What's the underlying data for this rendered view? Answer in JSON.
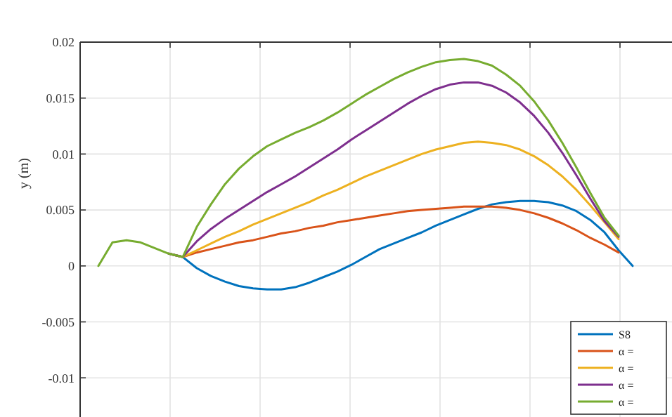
{
  "chart_data": {
    "type": "line",
    "ylabel": "y (m)",
    "categories": [
      null,
      null,
      null,
      null,
      null,
      null,
      null,
      null,
      null,
      null,
      null,
      null,
      null,
      null,
      null,
      null,
      null,
      null,
      null,
      null,
      null,
      null,
      null,
      null,
      null,
      null,
      null,
      null,
      null,
      null,
      null,
      null,
      null,
      null,
      null,
      null,
      null,
      null,
      null
    ],
    "series": [
      {
        "name": "S8",
        "color": "#0072bd",
        "values": [
          null,
          null,
          null,
          null,
          null,
          0.0011,
          0.0008,
          -0.0002,
          -0.0009,
          -0.0014,
          -0.0018,
          -0.002,
          -0.0021,
          -0.0021,
          -0.0019,
          -0.0015,
          -0.001,
          -0.0005,
          0.0001,
          0.0008,
          0.0015,
          0.002,
          0.0025,
          0.003,
          0.0036,
          0.0041,
          0.0046,
          0.0051,
          0.0055,
          0.0057,
          0.0058,
          0.0058,
          0.0057,
          0.0054,
          0.0049,
          0.0041,
          0.003,
          0.0014,
          0
        ]
      },
      {
        "name": "α =",
        "color": "#d95319",
        "values": [
          null,
          null,
          null,
          null,
          null,
          0.0011,
          0.0008,
          0.0012,
          0.0015,
          0.0018,
          0.0021,
          0.0023,
          0.0026,
          0.0029,
          0.0031,
          0.0034,
          0.0036,
          0.0039,
          0.0041,
          0.0043,
          0.0045,
          0.0047,
          0.0049,
          0.005,
          0.0051,
          0.0052,
          0.0053,
          0.0053,
          0.0053,
          0.0052,
          0.005,
          0.0047,
          0.0043,
          0.0038,
          0.0032,
          0.0025,
          0.0019,
          0.0012,
          null
        ]
      },
      {
        "name": "α =",
        "color": "#edb120",
        "values": [
          null,
          null,
          null,
          null,
          null,
          0.0011,
          0.0008,
          0.0014,
          0.002,
          0.0026,
          0.0031,
          0.0037,
          0.0042,
          0.0047,
          0.0052,
          0.0057,
          0.0063,
          0.0068,
          0.0074,
          0.008,
          0.0085,
          0.009,
          0.0095,
          0.01,
          0.0104,
          0.0107,
          0.011,
          0.0111,
          0.011,
          0.0108,
          0.0104,
          0.0098,
          0.009,
          0.008,
          0.0068,
          0.0054,
          0.0039,
          0.0024,
          null
        ]
      },
      {
        "name": "α =",
        "color": "#7e2f8e",
        "values": [
          null,
          null,
          null,
          null,
          null,
          0.0011,
          0.0008,
          0.0022,
          0.0033,
          0.0042,
          0.005,
          0.0058,
          0.0066,
          0.0073,
          0.008,
          0.0088,
          0.0096,
          0.0104,
          0.0113,
          0.0121,
          0.0129,
          0.0137,
          0.0145,
          0.0152,
          0.0158,
          0.0162,
          0.0164,
          0.0164,
          0.0161,
          0.0155,
          0.0146,
          0.0134,
          0.0119,
          0.0101,
          0.0081,
          0.006,
          0.004,
          0.0026,
          null
        ]
      },
      {
        "name": "α =",
        "color": "#77ac30",
        "values": [
          0,
          0.0021,
          0.0023,
          0.0021,
          0.0016,
          0.0011,
          0.0008,
          0.0035,
          0.0055,
          0.0073,
          0.0087,
          0.0098,
          0.0107,
          0.0113,
          0.0119,
          0.0124,
          0.013,
          0.0137,
          0.0145,
          0.0153,
          0.016,
          0.0167,
          0.0173,
          0.0178,
          0.0182,
          0.0184,
          0.0185,
          0.0183,
          0.0179,
          0.0171,
          0.0161,
          0.0147,
          0.013,
          0.011,
          0.0088,
          0.0065,
          0.0043,
          0.0027,
          null
        ]
      }
    ],
    "ylim": [
      -0.0135,
      0.02
    ],
    "yticks": [
      {
        "value": -0.01,
        "label": "-0.01"
      },
      {
        "value": -0.005,
        "label": "-0.005"
      },
      0,
      {
        "value": 0.005,
        "label": "0.005"
      },
      {
        "value": 0.01,
        "label": "0.01"
      },
      {
        "value": 0.015,
        "label": "0.015"
      },
      {
        "value": 0.02,
        "label": "0.02"
      }
    ],
    "grid": true,
    "legend": "bottom right"
  }
}
